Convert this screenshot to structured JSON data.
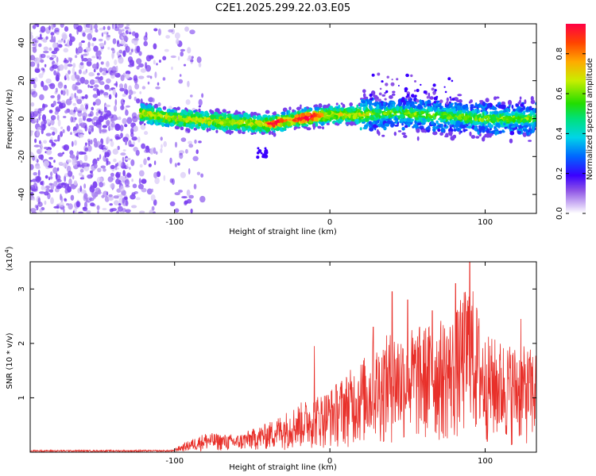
{
  "title": "C2E1.2025.299.22.03.E05",
  "colors": {
    "snr_line": "#e8302a",
    "noise": "#9966ee",
    "axis": "#000000"
  },
  "chart_data": [
    {
      "type": "heatmap",
      "name": "spectrogram",
      "title": "C2E1.2025.299.22.03.E05",
      "xlabel": "Height of straight line (km)",
      "ylabel": "Frequency (Hz)",
      "xlim": [
        -193,
        133
      ],
      "ylim": [
        -50,
        50
      ],
      "xticks": [
        -100,
        0,
        100
      ],
      "yticks": [
        -40,
        -20,
        0,
        20,
        40
      ],
      "grid": false,
      "colorbar": {
        "label": "Normalized spectral amplitude",
        "range": [
          0.0,
          0.95
        ],
        "ticks": [
          "0.0",
          "0.2",
          "0.4",
          "0.6",
          "0.8"
        ]
      },
      "signal_band": {
        "start_km": -122,
        "end_km": 133,
        "center_hz": [
          [
            -122,
            3
          ],
          [
            -100,
            0
          ],
          [
            -80,
            -1
          ],
          [
            -60,
            -2
          ],
          [
            -40,
            -3
          ],
          [
            -20,
            0
          ],
          [
            0,
            2
          ],
          [
            20,
            2
          ],
          [
            40,
            3
          ],
          [
            60,
            2
          ],
          [
            80,
            1
          ],
          [
            100,
            0
          ],
          [
            120,
            0
          ],
          [
            133,
            0
          ]
        ],
        "peak_amplitude_km": [
          -35,
          -18,
          -12
        ]
      },
      "noise_region": {
        "start_km": -193,
        "end_km": -100
      }
    },
    {
      "type": "line",
      "name": "snr",
      "xlabel": "Height of straight line (km)",
      "ylabel": "SNR (10 * v/v)",
      "ylabel_scale": "(x10",
      "ylabel_scale_exp": "4",
      "y_unit_multiplier": 10000,
      "xlim": [
        -193,
        133
      ],
      "ylim": [
        0,
        3.5
      ],
      "xticks": [
        -100,
        0,
        100
      ],
      "yticks": [
        1,
        2,
        3
      ],
      "grid": false,
      "envelope": [
        [
          -193,
          0.02
        ],
        [
          -120,
          0.03
        ],
        [
          -100,
          0.08
        ],
        [
          -90,
          0.25
        ],
        [
          -80,
          0.4
        ],
        [
          -60,
          0.35
        ],
        [
          -40,
          0.6
        ],
        [
          -20,
          1.0
        ],
        [
          0,
          1.3
        ],
        [
          10,
          1.6
        ],
        [
          20,
          1.9
        ],
        [
          40,
          2.5
        ],
        [
          60,
          2.6
        ],
        [
          80,
          2.8
        ],
        [
          90,
          3.6
        ],
        [
          100,
          2.4
        ],
        [
          120,
          2.2
        ],
        [
          133,
          2.1
        ]
      ],
      "peaks": [
        {
          "x": 90,
          "y": 3.6
        },
        {
          "x": 81,
          "y": 3.1
        },
        {
          "x": 40,
          "y": 2.95
        },
        {
          "x": 50,
          "y": 2.8
        },
        {
          "x": 66,
          "y": 2.6
        },
        {
          "x": 123,
          "y": 2.45
        },
        {
          "x": 28,
          "y": 2.3
        },
        {
          "x": -10,
          "y": 1.95
        }
      ]
    }
  ]
}
